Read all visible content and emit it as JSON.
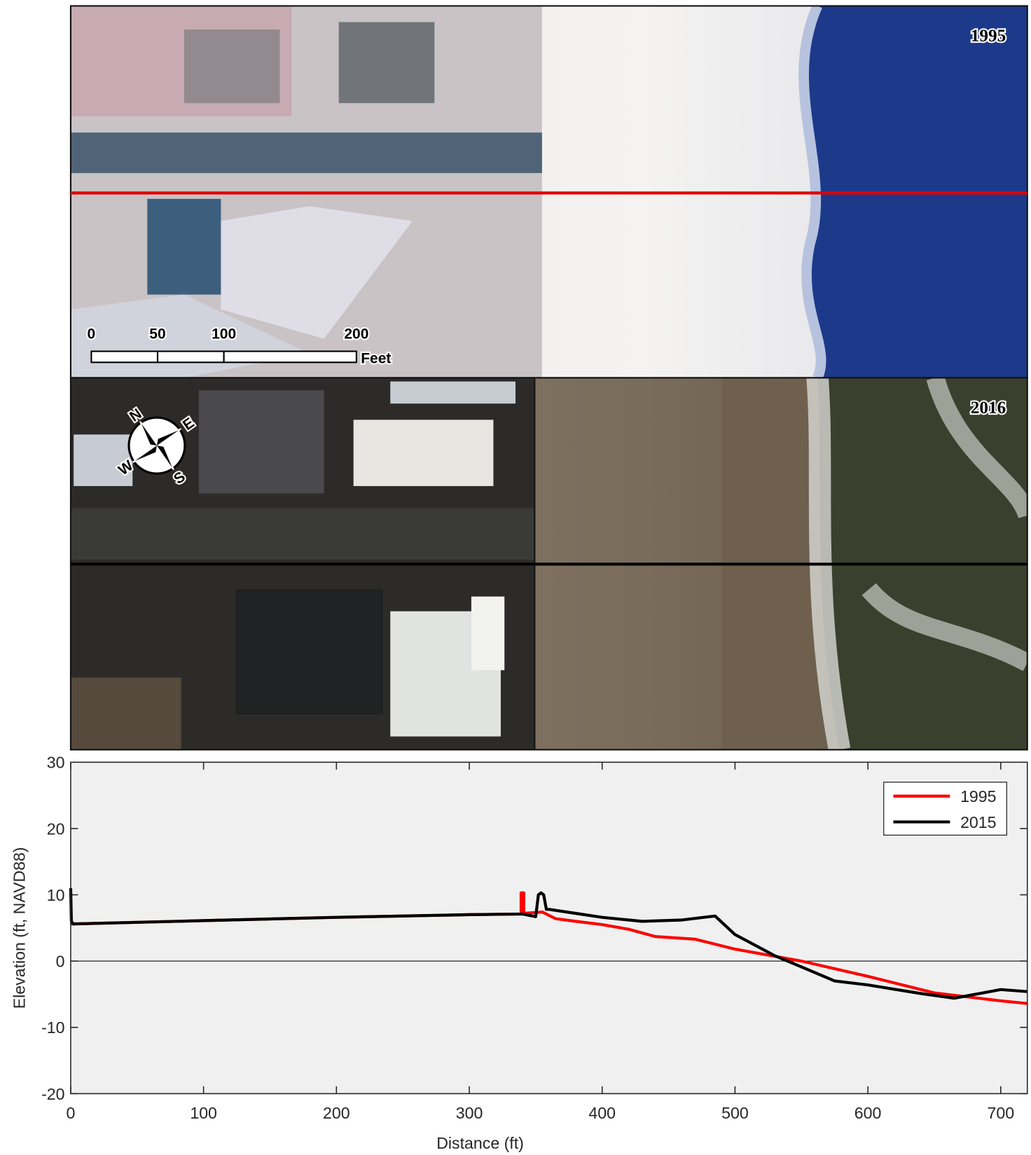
{
  "panels": {
    "top": {
      "year": "1995"
    },
    "bottom": {
      "year": "2016"
    },
    "scale_bar": {
      "labels": [
        "0",
        "50",
        "100",
        "200"
      ],
      "unit": "Feet"
    },
    "compass": [
      "N",
      "E",
      "S",
      "W"
    ]
  },
  "chart_data": {
    "type": "line",
    "xlabel": "Distance (ft)",
    "ylabel": "Elevation (ft, NAVD88)",
    "xlim": [
      0,
      720
    ],
    "ylim": [
      -20,
      30
    ],
    "xticks": [
      0,
      100,
      200,
      300,
      400,
      500,
      600,
      700
    ],
    "yticks": [
      -20,
      -10,
      0,
      10,
      20,
      30
    ],
    "grid": false,
    "zero_line": true,
    "legend": "upper right",
    "series": [
      {
        "name": "1995",
        "color": "#ff0000",
        "x": [
          0,
          100,
          200,
          300,
          339,
          339,
          341,
          341,
          355,
          365,
          380,
          400,
          420,
          440,
          470,
          500,
          550,
          600,
          650,
          700,
          720
        ],
        "values": [
          5.6,
          6.1,
          6.6,
          7.0,
          7.1,
          10.3,
          10.3,
          7.2,
          7.4,
          6.4,
          6.0,
          5.5,
          4.8,
          3.7,
          3.3,
          1.8,
          0.0,
          -2.3,
          -4.8,
          -6.0,
          -6.4
        ]
      },
      {
        "name": "2015",
        "color": "#000000",
        "x": [
          0,
          0.5,
          2,
          100,
          200,
          300,
          340,
          350,
          352,
          354,
          356,
          358,
          360,
          380,
          400,
          430,
          460,
          485,
          500,
          530,
          555,
          575,
          600,
          640,
          665,
          700,
          720
        ],
        "values": [
          11,
          6,
          5.6,
          6.1,
          6.6,
          7.0,
          7.1,
          6.7,
          10,
          10.3,
          10,
          7.8,
          7.8,
          7.2,
          6.6,
          6.0,
          6.2,
          6.8,
          4.0,
          0.8,
          -1.3,
          -3.0,
          -3.6,
          -4.9,
          -5.6,
          -4.3,
          -4.6
        ]
      }
    ]
  }
}
